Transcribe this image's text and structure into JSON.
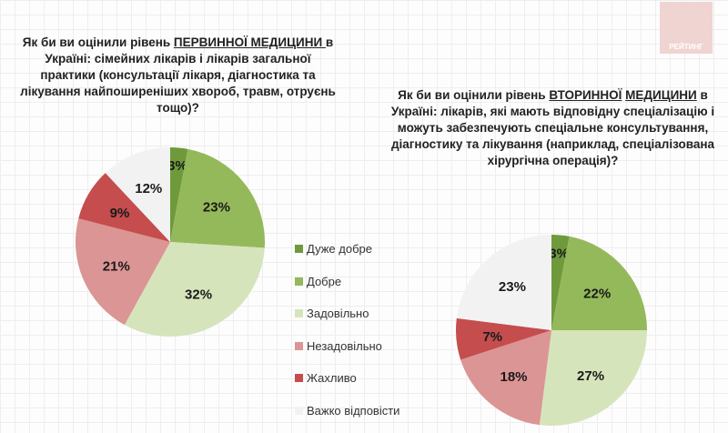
{
  "logo_text": "РЕЙТИНГ",
  "legend": [
    {
      "label": "Дуже добре",
      "color": "#6f9a3c"
    },
    {
      "label": "Добре",
      "color": "#94b95a"
    },
    {
      "label": "Задовільно",
      "color": "#d6e4bc"
    },
    {
      "label": "Незадовільно",
      "color": "#db9594"
    },
    {
      "label": "Жахливо",
      "color": "#c54d4d"
    },
    {
      "label": "Важко відповісти",
      "color": "#f2f2f2"
    }
  ],
  "chart_data": [
    {
      "type": "pie",
      "title_parts": [
        "Як би ви оцінили рівень ",
        "ПЕРВИННОЇ МЕДИЦИНИ ",
        "в Україні: сімейних лікарів і лікарів загальної практики (консультації лікаря, діагностика та лікування найпоширеніших хвороб, травм, отруєнь тощо)?"
      ],
      "categories": [
        "Дуже добре",
        "Добре",
        "Задовільно",
        "Незадовільно",
        "Жахливо",
        "Важко відповісти"
      ],
      "values": [
        3,
        23,
        32,
        21,
        9,
        12
      ],
      "labels": [
        "3%",
        "23%",
        "32%",
        "21%",
        "9%",
        "12%"
      ],
      "start": "top",
      "direction": "clockwise",
      "legend_position": "right"
    },
    {
      "type": "pie",
      "title_parts": [
        "Як би ви оцінили рівень ",
        "ВТОРИННОЇ",
        " ",
        "МЕДИЦИНИ",
        " в Україні: лікарів, які мають відповідну спеціалізацію і можуть забезпечують спеціальне консультування, діагностику та лікування (наприклад, спеціалізована хірургічна операція)?"
      ],
      "categories": [
        "Дуже добре",
        "Добре",
        "Задовільно",
        "Незадовільно",
        "Жахливо",
        "Важко відповісти"
      ],
      "values": [
        3,
        22,
        27,
        18,
        7,
        23
      ],
      "labels": [
        "3%",
        "22%",
        "27%",
        "18%",
        "7%",
        "23%"
      ],
      "start": "top",
      "direction": "clockwise"
    }
  ]
}
